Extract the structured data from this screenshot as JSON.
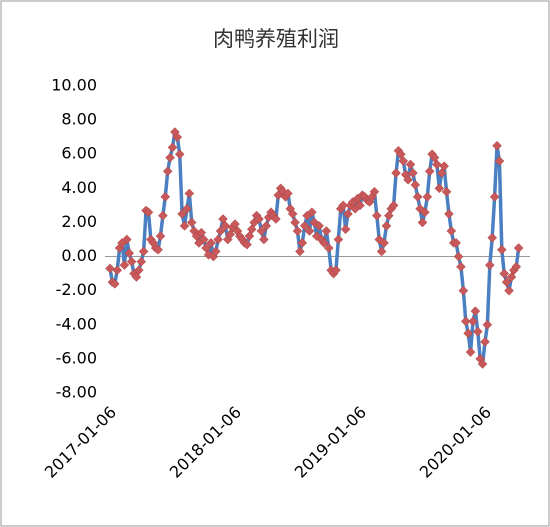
{
  "chart_data": {
    "type": "line",
    "title": "肉鸭养殖利润",
    "categories": [
      "2017-01-06",
      null,
      null,
      null,
      null,
      null,
      null,
      null,
      null,
      null,
      null,
      null,
      null,
      null,
      null,
      null,
      null,
      null,
      null,
      null,
      null,
      null,
      null,
      null,
      null,
      null,
      null,
      null,
      null,
      null,
      null,
      null,
      null,
      null,
      null,
      null,
      null,
      null,
      null,
      null,
      null,
      null,
      null,
      null,
      null,
      null,
      null,
      null,
      null,
      null,
      null,
      null,
      "2018-01-06",
      null,
      null,
      null,
      null,
      null,
      null,
      null,
      null,
      null,
      null,
      null,
      null,
      null,
      null,
      null,
      null,
      null,
      null,
      null,
      null,
      null,
      null,
      null,
      null,
      null,
      null,
      null,
      null,
      null,
      null,
      null,
      null,
      null,
      null,
      null,
      null,
      null,
      null,
      null,
      null,
      null,
      null,
      null,
      null,
      null,
      null,
      null,
      null,
      null,
      null,
      null,
      "2019-01-06",
      null,
      null,
      null,
      null,
      null,
      null,
      null,
      null,
      null,
      null,
      null,
      null,
      null,
      null,
      null,
      null,
      null,
      null,
      null,
      null,
      null,
      null,
      null,
      null,
      null,
      null,
      null,
      null,
      null,
      null,
      null,
      null,
      null,
      null,
      null,
      null,
      null,
      null,
      null,
      null,
      null,
      null,
      null,
      null,
      null,
      null,
      null,
      null,
      null,
      null,
      null,
      "2020-01-06",
      null,
      null,
      null,
      null,
      null,
      null,
      null,
      null,
      null,
      null,
      null,
      null,
      null,
      null
    ],
    "values": [
      -0.7,
      -1.5,
      -1.6,
      -0.8,
      0.5,
      0.8,
      -0.5,
      1.0,
      0.2,
      -0.3,
      -1.0,
      -1.2,
      -0.8,
      -0.3,
      0.3,
      2.7,
      2.6,
      1.0,
      0.8,
      0.5,
      0.4,
      1.2,
      2.4,
      3.5,
      5.0,
      5.8,
      6.4,
      7.3,
      7.0,
      6.0,
      2.5,
      1.8,
      2.8,
      3.7,
      2.0,
      1.5,
      1.2,
      0.8,
      1.4,
      1.0,
      0.5,
      0.1,
      0.8,
      0.0,
      0.3,
      1.0,
      1.5,
      2.2,
      1.8,
      1.0,
      1.3,
      1.7,
      1.9,
      1.5,
      1.2,
      1.0,
      0.8,
      0.7,
      1.2,
      1.6,
      2.0,
      2.4,
      2.2,
      1.5,
      1.0,
      1.8,
      2.3,
      2.6,
      2.4,
      2.2,
      3.6,
      4.0,
      3.8,
      3.5,
      3.7,
      2.8,
      2.5,
      2.0,
      1.5,
      0.3,
      0.8,
      1.8,
      2.4,
      1.5,
      2.6,
      2.0,
      1.2,
      1.8,
      1.0,
      0.8,
      1.5,
      0.5,
      -0.8,
      -1.0,
      -0.8,
      1.0,
      2.8,
      3.0,
      1.6,
      2.5,
      3.0,
      3.2,
      2.8,
      3.4,
      3.0,
      3.6,
      3.5,
      3.3,
      3.2,
      3.5,
      3.8,
      2.4,
      1.0,
      0.3,
      0.8,
      1.8,
      2.4,
      2.8,
      3.0,
      4.9,
      6.2,
      6.0,
      5.6,
      4.8,
      4.5,
      5.4,
      4.9,
      4.2,
      3.5,
      2.8,
      2.0,
      2.6,
      3.5,
      5.0,
      6.0,
      5.8,
      5.4,
      4.0,
      4.9,
      5.3,
      3.8,
      2.5,
      1.5,
      0.8,
      0.8,
      0.0,
      -0.6,
      -2.0,
      -3.8,
      -4.5,
      -5.6,
      -3.8,
      -3.2,
      -4.4,
      -6.0,
      -6.3,
      -5.0,
      -4.0,
      -0.5,
      1.1,
      3.5,
      6.5,
      5.6,
      0.4,
      -1.0,
      -1.5,
      -2.0,
      -1.2,
      -0.8,
      -0.6,
      0.5
    ],
    "color": "#4a7fc1",
    "marker_color": "#c8585a",
    "ylim": [
      -8,
      10
    ],
    "yticks": [
      {
        "value": -8,
        "label": "-8.00"
      },
      {
        "value": -6,
        "label": "-6.00"
      },
      {
        "value": -4,
        "label": "-4.00"
      },
      {
        "value": -2,
        "label": "-2.00"
      },
      {
        "value": 0,
        "label": "0.00"
      },
      {
        "value": 2,
        "label": "2.00"
      },
      {
        "value": 4,
        "label": "4.00"
      },
      {
        "value": 6,
        "label": "6.00"
      },
      {
        "value": 8,
        "label": "8.00"
      },
      {
        "value": 10,
        "label": "10.00"
      }
    ],
    "grid": false
  }
}
